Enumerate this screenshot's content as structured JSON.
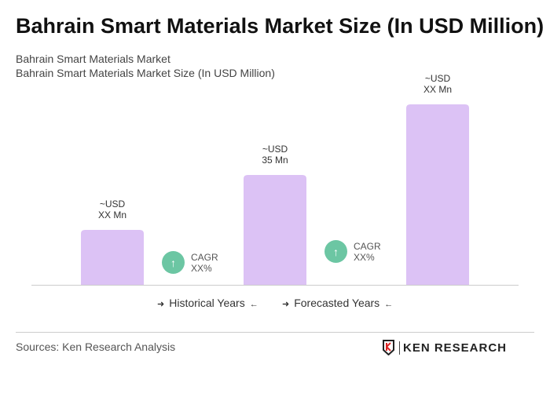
{
  "title": "Bahrain Smart Materials Market Size (In USD Million)",
  "subtitle1": "Bahrain Smart Materials Market",
  "subtitle2": "Bahrain Smart Materials Market Size (In USD Million)",
  "chart_data": {
    "type": "bar",
    "values": [
      17.5,
      35,
      57.5
    ],
    "data_labels": [
      [
        "~USD",
        "XX Mn"
      ],
      [
        "~USD",
        "35 Mn"
      ],
      [
        "~USD",
        "XX Mn"
      ]
    ],
    "bar_color": "#dcc2f5",
    "cagr": [
      {
        "label": "CAGR",
        "value": "XX%"
      },
      {
        "label": "CAGR",
        "value": "XX%"
      }
    ],
    "cagr_color": "#6cc6a3",
    "legend": [
      "Historical Years",
      "Forecasted Years"
    ]
  },
  "sources": "Sources: Ken Research Analysis",
  "logo_text": "KEN RESEARCH"
}
